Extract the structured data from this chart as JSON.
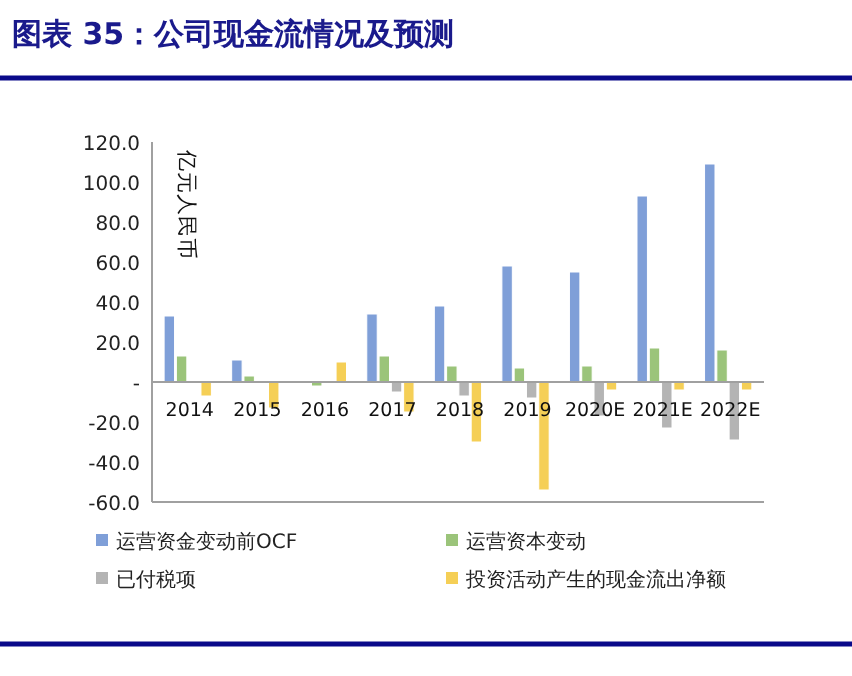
{
  "chart_data": {
    "type": "bar",
    "title": "图表 35：公司现金流情况及预测",
    "ylabel": "亿元人民币",
    "categories": [
      "2014",
      "2015",
      "2016",
      "2017",
      "2018",
      "2019",
      "2020E",
      "2021E",
      "2022E"
    ],
    "series": [
      {
        "name": "运营资金变动前OCF",
        "color": "#7f9fd8",
        "values": [
          33,
          11,
          null,
          34,
          38,
          58,
          55,
          93,
          109
        ]
      },
      {
        "name": "运营资本变动",
        "color": "#9bc47a",
        "values": [
          13,
          3,
          -2,
          13,
          8,
          7,
          8,
          17,
          16
        ]
      },
      {
        "name": "已付税项",
        "color": "#b4b4b4",
        "values": [
          null,
          null,
          null,
          -5,
          -7,
          -8,
          -17,
          -23,
          -29
        ]
      },
      {
        "name": "投资活动产生的现金流出净额",
        "color": "#f5cf56",
        "values": [
          -7,
          -13,
          10,
          -15,
          -30,
          -54,
          -4,
          -4,
          -4
        ]
      }
    ],
    "ylim": [
      -60,
      120
    ],
    "yticks": [
      {
        "value": 120,
        "label": "120.0"
      },
      {
        "value": 100,
        "label": "100.0"
      },
      {
        "value": 80,
        "label": "80.0"
      },
      {
        "value": 60,
        "label": "60.0"
      },
      {
        "value": 40,
        "label": "40.0"
      },
      {
        "value": 20,
        "label": "20.0"
      },
      {
        "value": 0,
        "label": "-"
      },
      {
        "value": -20,
        "label": "-20.0"
      },
      {
        "value": -40,
        "label": "-40.0"
      },
      {
        "value": -60,
        "label": "-60.0"
      }
    ],
    "legend": "bottom"
  }
}
